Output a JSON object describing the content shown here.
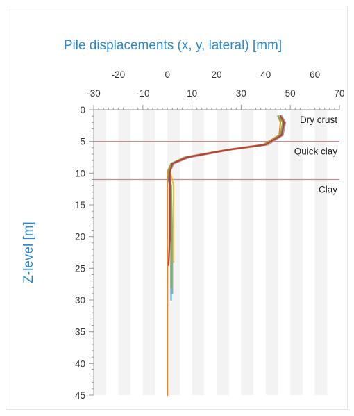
{
  "chart_data": {
    "type": "line",
    "title": "Pile displacements (x, y, lateral) [mm]",
    "ylabel": "Z-level [m]",
    "xlim_bottom": [
      -30,
      70
    ],
    "xticks_bottom": [
      "-30",
      "-10",
      "10",
      "30",
      "50",
      "70"
    ],
    "xticks_top": [
      "-20",
      "0",
      "20",
      "40",
      "60"
    ],
    "ylim": [
      0,
      45
    ],
    "yticks": [
      "0",
      "5",
      "10",
      "15",
      "20",
      "25",
      "30",
      "35",
      "40",
      "45"
    ],
    "y_inverted": true,
    "grid_bands": true,
    "layers": [
      {
        "name": "Dry crust",
        "boundary_depth": 5
      },
      {
        "name": "Quick clay",
        "boundary_depth": 11
      },
      {
        "name": "Clay",
        "boundary_depth": null
      }
    ],
    "series": [
      {
        "color": "#2e7fcf",
        "x": [
          46,
          47,
          46.5,
          40,
          25,
          8,
          2,
          0.5,
          0.5,
          1,
          1.5,
          1.5
        ],
        "z": [
          1,
          2,
          4,
          5.5,
          6.3,
          7.5,
          8.5,
          9.8,
          11,
          12,
          20,
          29
        ]
      },
      {
        "color": "#e08a2c",
        "x": [
          45,
          46,
          45.5,
          39,
          24,
          7,
          1.5,
          0,
          0,
          0,
          0,
          0
        ],
        "z": [
          1,
          2,
          4,
          5.5,
          6.3,
          7.5,
          8.5,
          9.8,
          11,
          20,
          30,
          45
        ]
      },
      {
        "color": "#9aa3ac",
        "x": [
          46.5,
          48,
          47,
          41,
          26,
          9,
          2.5,
          1,
          1,
          1.5,
          2,
          2
        ],
        "z": [
          1,
          2,
          4,
          5.5,
          6.3,
          7.5,
          8.5,
          9.8,
          11,
          12,
          20,
          29
        ]
      },
      {
        "color": "#e8c140",
        "x": [
          45.5,
          47.5,
          46,
          40.5,
          25.5,
          8,
          2,
          1,
          2,
          2.5,
          2.5,
          2.5
        ],
        "z": [
          1,
          2,
          4,
          5.5,
          6.3,
          7.5,
          8.5,
          9.8,
          11,
          12,
          20,
          24
        ]
      },
      {
        "color": "#5ab5e6",
        "x": [
          46,
          47,
          46,
          40,
          25,
          8,
          2,
          0.5,
          1,
          1.5,
          1.5,
          1.5
        ],
        "z": [
          1,
          2,
          4,
          5.5,
          6.3,
          7.5,
          8.5,
          9.8,
          11,
          12,
          20,
          30
        ]
      },
      {
        "color": "#6fb25a",
        "x": [
          45,
          47,
          46,
          39.5,
          24.5,
          7.5,
          1.5,
          0.5,
          1,
          1.5,
          1.5
        ],
        "z": [
          1,
          2,
          4,
          5.5,
          6.3,
          7.5,
          8.5,
          9.8,
          11,
          12,
          28
        ]
      },
      {
        "color": "#c23b3b",
        "x": [
          46,
          47.5,
          46.5,
          40,
          25,
          8,
          2,
          1,
          1,
          1,
          1,
          0.5
        ],
        "z": [
          1,
          2,
          4,
          5.5,
          6.3,
          7.5,
          8.5,
          9.8,
          11,
          12,
          20,
          24.5
        ]
      }
    ]
  }
}
